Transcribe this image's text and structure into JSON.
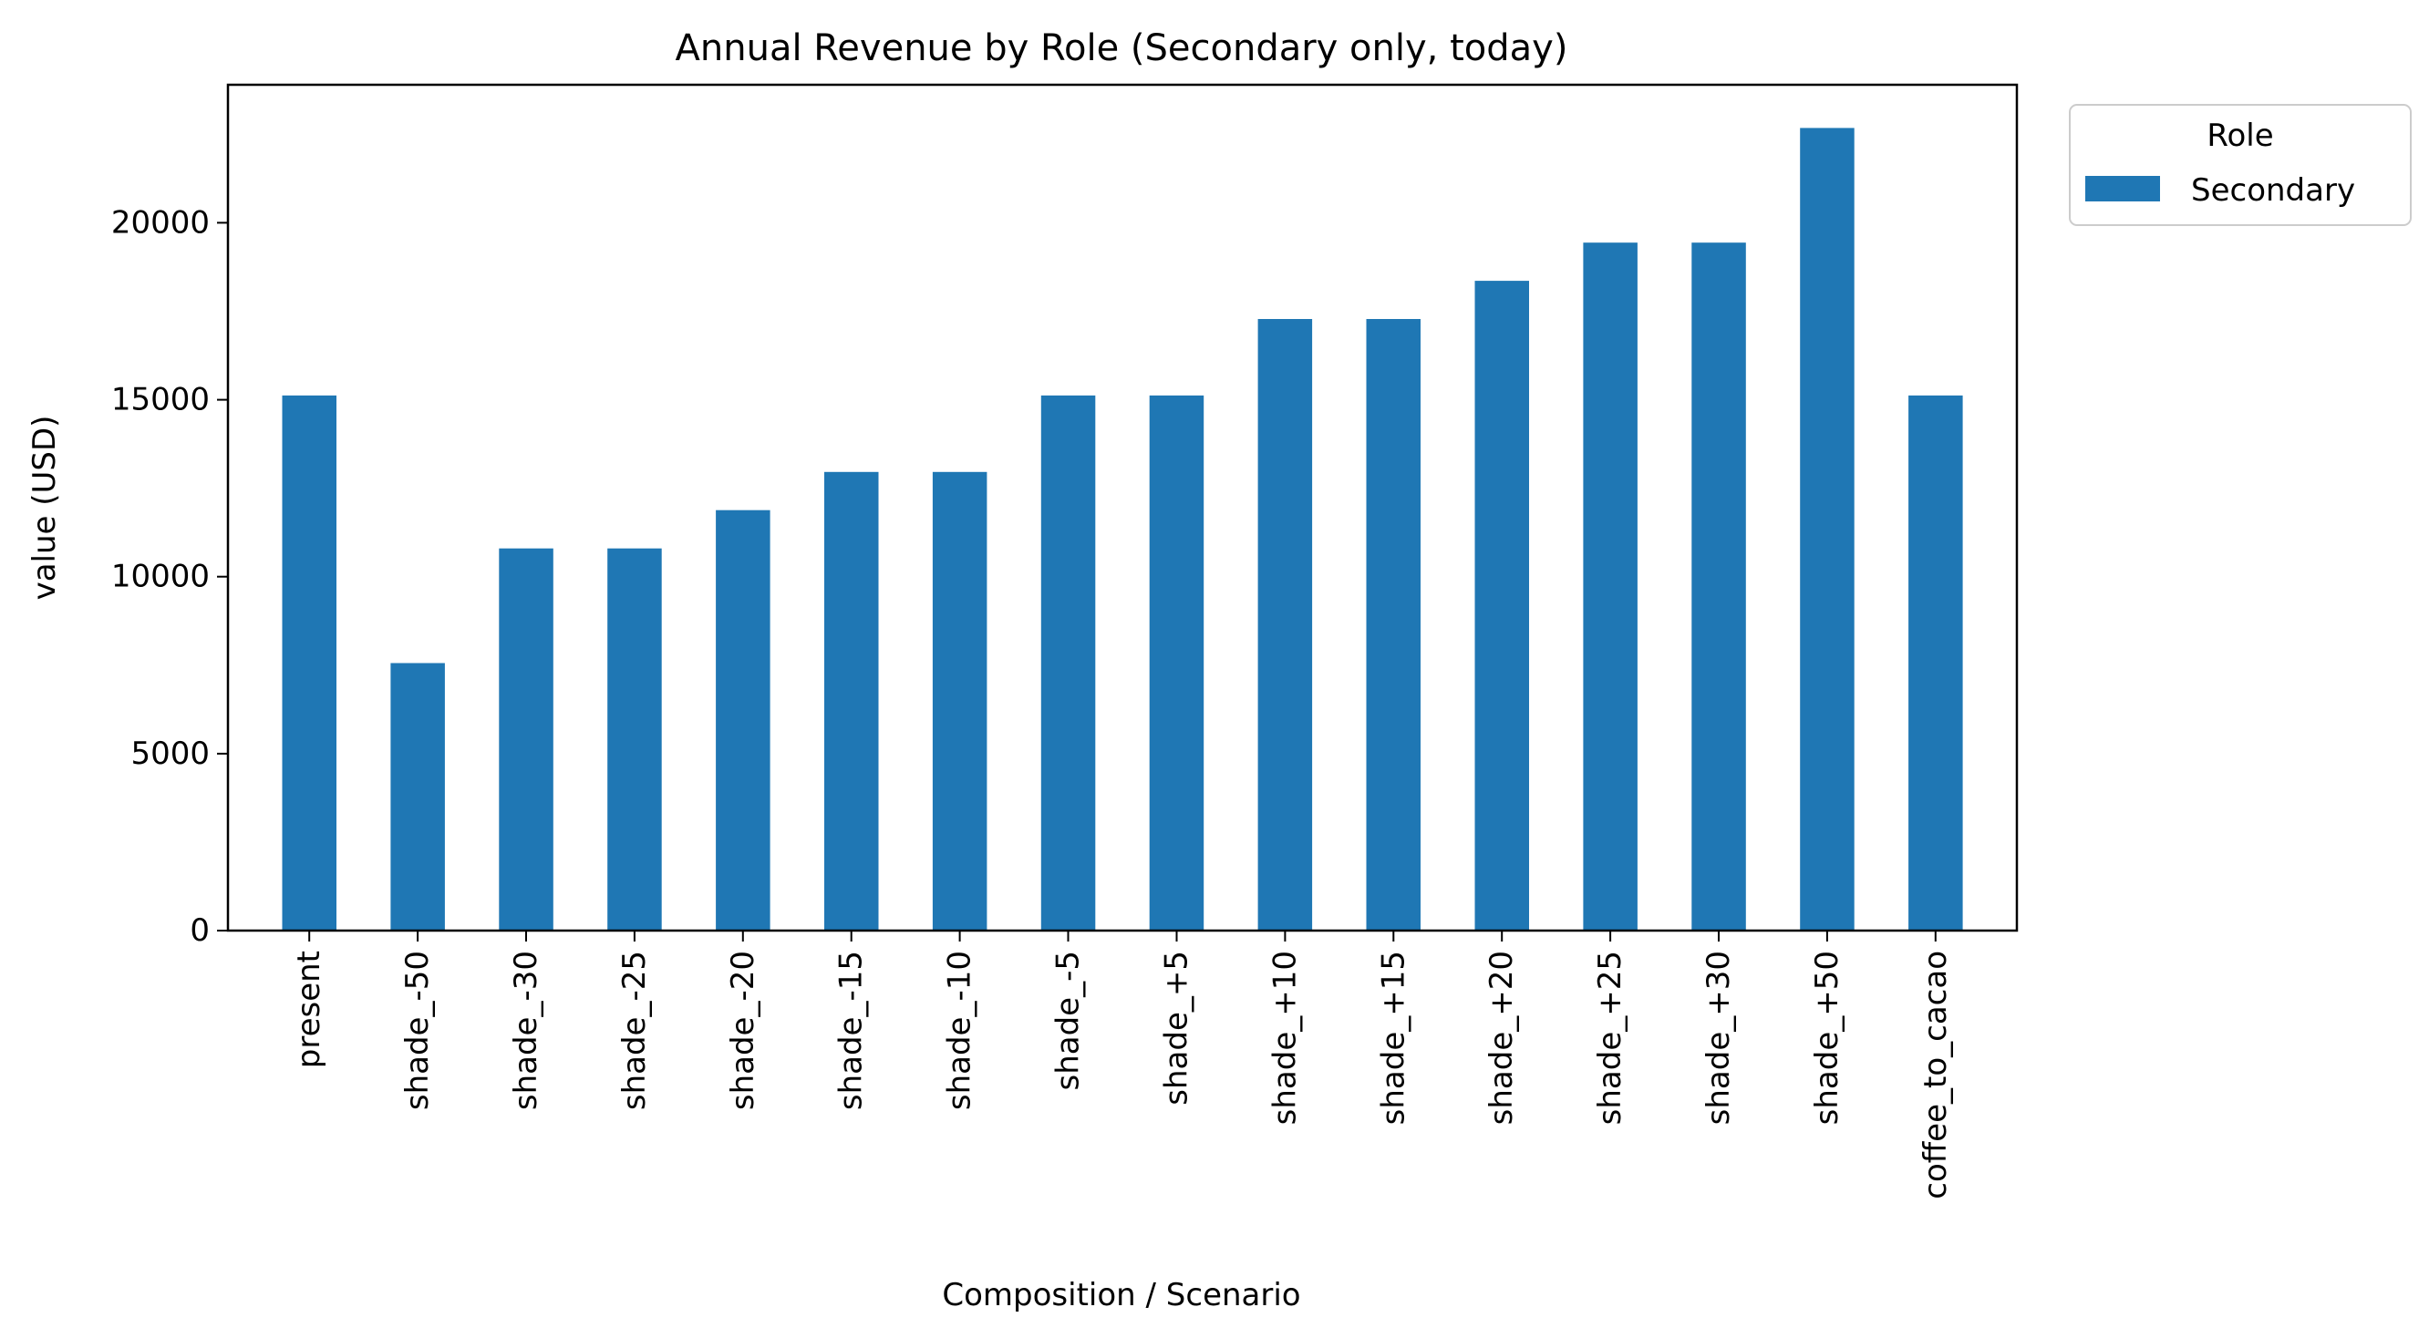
{
  "chart_data": {
    "type": "bar",
    "title": "Annual Revenue by Role (Secondary only, today)",
    "xlabel": "Composition / Scenario",
    "ylabel": "value (USD)",
    "categories": [
      "present",
      "shade_-50",
      "shade_-30",
      "shade_-25",
      "shade_-20",
      "shade_-15",
      "shade_-10",
      "shade_-5",
      "shade_+5",
      "shade_+10",
      "shade_+15",
      "shade_+20",
      "shade_+25",
      "shade_+30",
      "shade_+50",
      "coffee_to_cacao"
    ],
    "series": [
      {
        "name": "Secondary",
        "color": "#1f77b4",
        "values": [
          15120,
          7560,
          10800,
          10800,
          11880,
          12960,
          12960,
          15120,
          15120,
          17280,
          17280,
          18360,
          19440,
          19440,
          22680,
          15120
        ]
      }
    ],
    "ylim": [
      0,
      23900
    ],
    "yticks": [
      0,
      5000,
      10000,
      15000,
      20000
    ],
    "grid": false,
    "legend": {
      "title": "Role",
      "placement": "outside-top-right"
    }
  }
}
